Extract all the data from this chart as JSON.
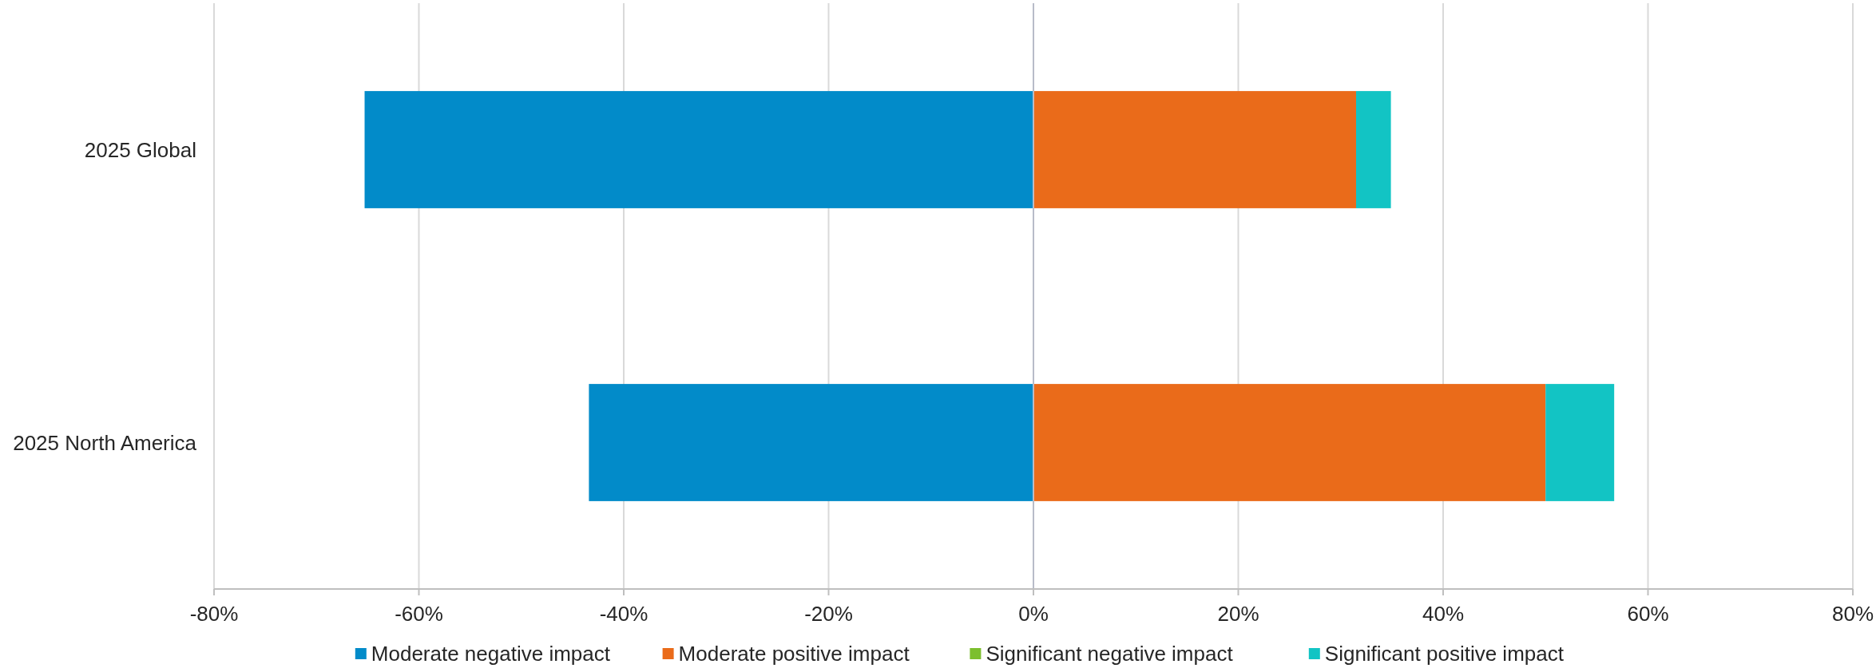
{
  "chart_data": {
    "type": "bar",
    "orientation": "horizontal",
    "stacked": true,
    "categories": [
      "2025 Global",
      "2025 North America"
    ],
    "series": [
      {
        "name": "Moderate negative impact",
        "color": "#028bc9",
        "values": [
          -65.3,
          -43.4
        ]
      },
      {
        "name": "Moderate positive impact",
        "color": "#ea6b1a",
        "values": [
          31.5,
          50
        ]
      },
      {
        "name": "Significant negative impact",
        "color": "#7cbf2e",
        "values": [
          0,
          0
        ]
      },
      {
        "name": "Significant positive impact",
        "color": "#12c4c4",
        "values": [
          3.4,
          6.7
        ]
      }
    ],
    "xlim": [
      -80,
      80
    ],
    "xticks": [
      {
        "value": -80,
        "label": "-80%"
      },
      {
        "value": -60,
        "label": "-60%"
      },
      {
        "value": -40,
        "label": "-40%"
      },
      {
        "value": -20,
        "label": "-20%"
      },
      {
        "value": 0,
        "label": "0%"
      },
      {
        "value": 20,
        "label": "20%"
      },
      {
        "value": 40,
        "label": "40%"
      },
      {
        "value": 60,
        "label": "60%"
      },
      {
        "value": 80,
        "label": "80%"
      }
    ],
    "grid": "x",
    "legend": "bottom"
  }
}
